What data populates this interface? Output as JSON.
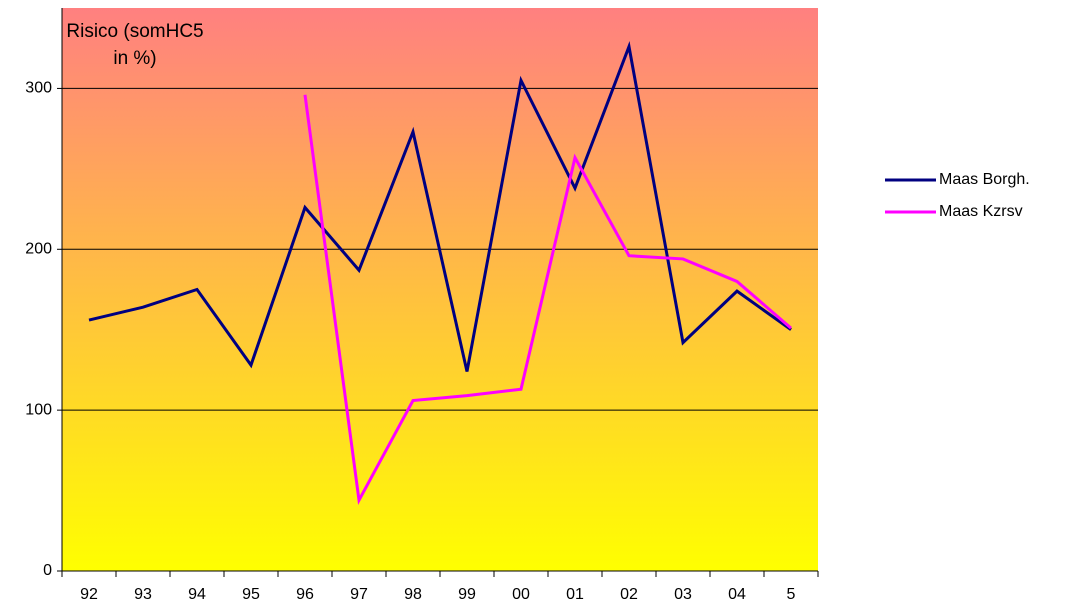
{
  "chart_data": {
    "type": "line",
    "title": "Risico (somHC5 in %)",
    "categories": [
      "92",
      "93",
      "94",
      "95",
      "96",
      "97",
      "98",
      "99",
      "00",
      "01",
      "02",
      "03",
      "04",
      "5"
    ],
    "series": [
      {
        "name": "Maas Borgh.",
        "color": "#000080",
        "values": [
          156,
          164,
          175,
          128,
          226,
          187,
          273,
          124,
          305,
          238,
          326,
          142,
          174,
          150
        ]
      },
      {
        "name": "Maas Kzrsv",
        "color": "#ff00ff",
        "values": [
          null,
          null,
          null,
          null,
          296,
          44,
          106,
          109,
          113,
          257,
          196,
          194,
          180,
          151
        ]
      }
    ],
    "ylim": [
      0,
      350
    ],
    "yticks": [
      0,
      100,
      200,
      300
    ],
    "grid": true,
    "legend": "right"
  }
}
